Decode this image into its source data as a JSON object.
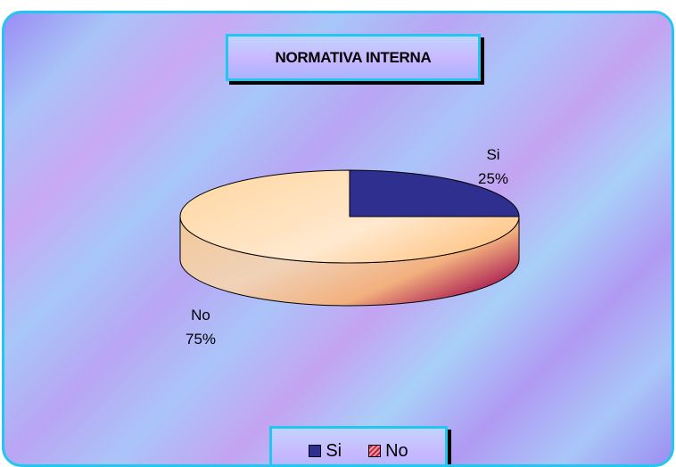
{
  "chart_data": {
    "type": "pie",
    "title": "NORMATIVA INTERNA",
    "labels": [
      "Si",
      "No"
    ],
    "values": [
      25,
      75
    ],
    "percent_labels": [
      "25%",
      "75%"
    ],
    "style": "3d",
    "legend_placement": "bottom",
    "colors": {
      "Si": "#2f2f8f",
      "No": "#c0205a"
    }
  },
  "legend": {
    "items": [
      {
        "label": "Si"
      },
      {
        "label": "No"
      }
    ]
  }
}
